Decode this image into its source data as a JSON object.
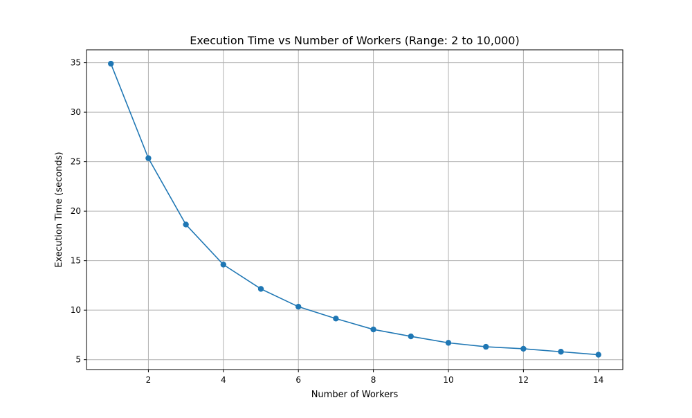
{
  "chart_data": {
    "type": "line",
    "title": "Execution Time vs Number of Workers (Range: 2 to 10,000)",
    "xlabel": "Number of Workers",
    "ylabel": "Execution Time (seconds)",
    "xlim": [
      0.35,
      14.65
    ],
    "ylim": [
      4.0,
      36.3
    ],
    "xticks": [
      2,
      4,
      6,
      8,
      10,
      12,
      14
    ],
    "yticks": [
      5,
      10,
      15,
      20,
      25,
      30,
      35
    ],
    "grid": true,
    "series": [
      {
        "color": "#1f77b4",
        "marker": "circle",
        "x": [
          1,
          2,
          3,
          4,
          5,
          6,
          7,
          8,
          9,
          10,
          11,
          12,
          13,
          14
        ],
        "y": [
          34.9,
          25.35,
          18.65,
          14.6,
          12.15,
          10.35,
          9.15,
          8.05,
          7.35,
          6.7,
          6.3,
          6.1,
          5.8,
          5.5
        ]
      }
    ]
  }
}
